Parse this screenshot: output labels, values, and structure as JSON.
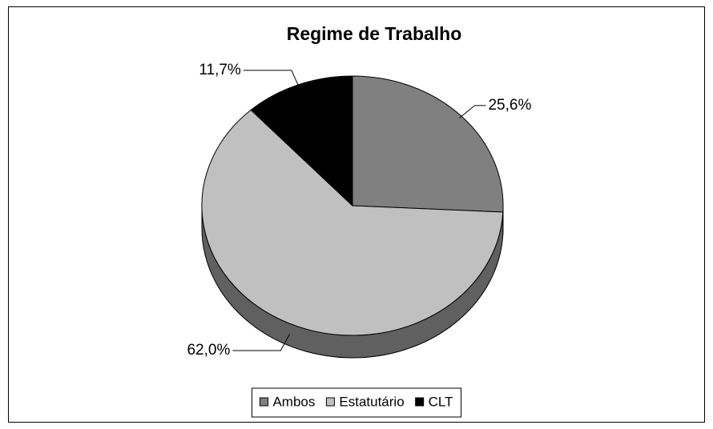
{
  "chart_data": {
    "type": "pie",
    "title": "Regime de Trabalho",
    "categories": [
      "Ambos",
      "Estatutário",
      "CLT"
    ],
    "values": [
      25.6,
      62.0,
      11.7
    ],
    "value_labels": [
      "25,6%",
      "62,0%",
      "11,7%"
    ],
    "colors": [
      "#808080",
      "#c0c0c0",
      "#000000"
    ],
    "legend": "bottom"
  }
}
